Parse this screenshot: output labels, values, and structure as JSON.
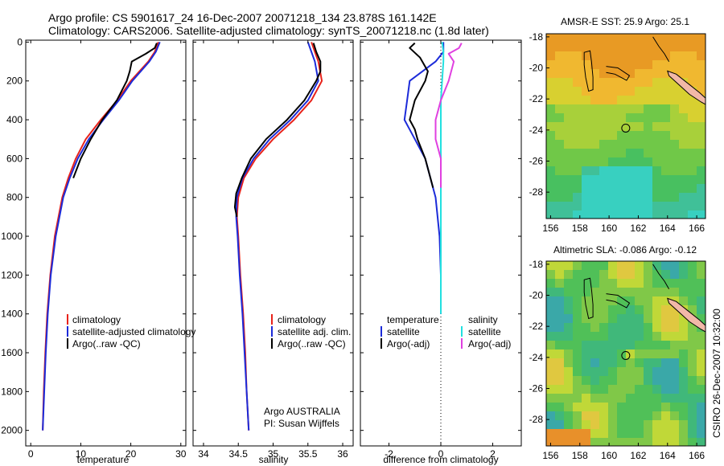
{
  "header": {
    "line1": "Argo profile: CS 5901617_24 16-Dec-2007 20071218_134 23.878S 161.142E",
    "line2": "Climatology: CARS2006. Satellite-adjusted climatology: synTS_20071218.nc (1.8d later)"
  },
  "side_caption": "CSIRO 26-Dec-2007 10:32:00",
  "credits": {
    "line1": "Argo AUSTRALIA",
    "line2": "PI: Susan Wijffels"
  },
  "colors": {
    "climatology": "#e8231b",
    "satellite": "#1c2bd9",
    "argo": "#000000",
    "sal_satellite": "#22e0e0",
    "sal_argo": "#e040e0"
  },
  "chart_data": [
    {
      "type": "line",
      "xlabel": "temperature",
      "xlim": [
        -1,
        31
      ],
      "ylim": [
        2080,
        -10
      ],
      "y_reversed": true,
      "xticks": [
        "0",
        "10",
        "20",
        "30"
      ],
      "yticks": [
        "0",
        "200",
        "400",
        "600",
        "800",
        "1000",
        "1200",
        "1400",
        "1600",
        "1800",
        "2000"
      ],
      "legend": [
        "climatology",
        "satellite-adjusted climatology",
        "Argo(..raw -QC)"
      ],
      "series": [
        {
          "name": "climatology",
          "color": "#e8231b",
          "depth": [
            0,
            50,
            100,
            200,
            300,
            400,
            500,
            600,
            700,
            800,
            1000,
            1200,
            1400,
            1600,
            1800,
            2000
          ],
          "values": [
            25.5,
            24.8,
            23.5,
            20.0,
            17.3,
            14.0,
            11.0,
            9.0,
            7.5,
            6.3,
            4.8,
            3.9,
            3.3,
            2.9,
            2.6,
            2.4
          ]
        },
        {
          "name": "satellite-adjusted climatology",
          "color": "#1c2bd9",
          "depth": [
            0,
            50,
            100,
            200,
            300,
            400,
            500,
            600,
            700,
            800,
            1000,
            1200,
            1400,
            1600,
            1800,
            2000
          ],
          "values": [
            25.8,
            25.0,
            23.7,
            20.3,
            17.6,
            14.5,
            11.6,
            9.4,
            7.8,
            6.5,
            5.0,
            4.0,
            3.4,
            3.0,
            2.7,
            2.4
          ]
        },
        {
          "name": "Argo(..raw -QC)",
          "color": "#000000",
          "depth": [
            5,
            30,
            60,
            100,
            150,
            200,
            300,
            400,
            500,
            600,
            700
          ],
          "values": [
            25.2,
            24.8,
            23.0,
            20.2,
            19.8,
            19.2,
            17.2,
            14.3,
            12.0,
            10.0,
            8.5
          ]
        }
      ]
    },
    {
      "type": "line",
      "xlabel": "salinity",
      "xlim": [
        33.85,
        36.15
      ],
      "ylim": [
        2080,
        -10
      ],
      "y_reversed": true,
      "xticks": [
        "34",
        "34.5",
        "35",
        "35.5",
        "36"
      ],
      "yticks": [],
      "legend": [
        "climatology",
        "satellite adj. clim.",
        "Argo(..raw -QC)"
      ],
      "series": [
        {
          "name": "climatology",
          "color": "#e8231b",
          "depth": [
            0,
            50,
            100,
            200,
            300,
            400,
            500,
            600,
            700,
            800,
            900,
            1000,
            1200,
            1400,
            1600,
            1800,
            2000
          ],
          "values": [
            35.55,
            35.6,
            35.65,
            35.7,
            35.55,
            35.3,
            35.0,
            34.75,
            34.58,
            34.5,
            34.48,
            34.5,
            34.53,
            34.57,
            34.6,
            34.62,
            34.65
          ]
        },
        {
          "name": "satellite adj. clim.",
          "color": "#1c2bd9",
          "depth": [
            0,
            50,
            100,
            200,
            300,
            400,
            500,
            600,
            700,
            800,
            900,
            1000,
            1200,
            1400,
            1600,
            1800,
            2000
          ],
          "values": [
            35.5,
            35.55,
            35.6,
            35.65,
            35.5,
            35.25,
            34.95,
            34.72,
            34.56,
            34.48,
            34.47,
            34.49,
            34.52,
            34.56,
            34.59,
            34.62,
            34.65
          ]
        },
        {
          "name": "Argo(..raw -QC)",
          "color": "#000000",
          "depth": [
            5,
            50,
            100,
            150,
            200,
            300,
            400,
            500,
            600,
            700,
            780,
            850,
            900
          ],
          "values": [
            35.58,
            35.62,
            35.68,
            35.68,
            35.62,
            35.45,
            35.2,
            34.9,
            34.68,
            34.55,
            34.47,
            34.45,
            34.48
          ]
        }
      ]
    },
    {
      "type": "line",
      "xlabel": "difference from climatology",
      "xlim": [
        -3.1,
        3.1
      ],
      "ylim": [
        2080,
        -10
      ],
      "y_reversed": true,
      "xticks": [
        "-2",
        "0",
        "2"
      ],
      "yticks": [],
      "zero_line": "dotted",
      "legend": {
        "temperature_heading": "temperature",
        "salinity_heading": "salinity",
        "temperature": [
          "satellite",
          "Argo(-adj)"
        ],
        "salinity": [
          "satellite",
          "Argo(-adj)"
        ]
      },
      "series": [
        {
          "name": "satellite",
          "group": "temperature",
          "color": "#1c2bd9",
          "depth": [
            0,
            50,
            100,
            200,
            300,
            400,
            500,
            600,
            800,
            1000,
            1200,
            1400
          ],
          "values": [
            0.1,
            0.1,
            -0.2,
            -1.2,
            -1.3,
            -1.4,
            -1.0,
            -0.6,
            -0.2,
            -0.05,
            0.0,
            0.0
          ]
        },
        {
          "name": "Argo(-adj)",
          "group": "temperature",
          "color": "#000000",
          "depth": [
            5,
            30,
            80,
            150,
            200,
            300,
            400,
            450,
            500,
            600,
            700,
            750
          ],
          "values": [
            -1.0,
            -1.2,
            -0.8,
            -0.5,
            -0.6,
            -1.0,
            -1.2,
            -1.0,
            -0.9,
            -0.6,
            -0.4,
            -0.3
          ]
        },
        {
          "name": "satellite",
          "group": "salinity",
          "color": "#22e0e0",
          "depth": [
            0,
            50,
            100,
            200,
            300,
            400,
            600,
            800,
            1000,
            1400
          ],
          "values": [
            0.05,
            0.1,
            0.1,
            0.05,
            0.0,
            0.0,
            0.0,
            0.0,
            0.0,
            0.0
          ]
        },
        {
          "name": "Argo(-adj)",
          "group": "salinity",
          "color": "#e040e0",
          "depth": [
            5,
            30,
            60,
            100,
            200,
            300,
            400,
            500,
            600,
            700,
            750
          ],
          "values": [
            0.8,
            0.7,
            0.3,
            0.5,
            0.3,
            0.0,
            -0.2,
            -0.2,
            0.0,
            0.0,
            0.0
          ]
        }
      ]
    },
    {
      "type": "heatmap",
      "title": "AMSR-E SST: 25.9 Argo: 25.1",
      "xlim": [
        155.7,
        166.6
      ],
      "ylim": [
        -29.7,
        -17.8
      ],
      "xticks": [
        "156",
        "158",
        "160",
        "162",
        "164",
        "166"
      ],
      "yticks": [
        "-18",
        "-20",
        "-22",
        "-24",
        "-26",
        "-28"
      ],
      "marker": [
        161.142,
        -23.878
      ]
    },
    {
      "type": "heatmap",
      "title": "Altimetric SLA: -0.086 Argo: -0.12",
      "xlim": [
        155.7,
        166.6
      ],
      "ylim": [
        -29.7,
        -17.8
      ],
      "xticks": [
        "156",
        "158",
        "160",
        "162",
        "164",
        "166"
      ],
      "yticks": [
        "-18",
        "-20",
        "-22",
        "-24",
        "-26",
        "-28"
      ],
      "marker": [
        161.142,
        -23.878
      ]
    }
  ]
}
